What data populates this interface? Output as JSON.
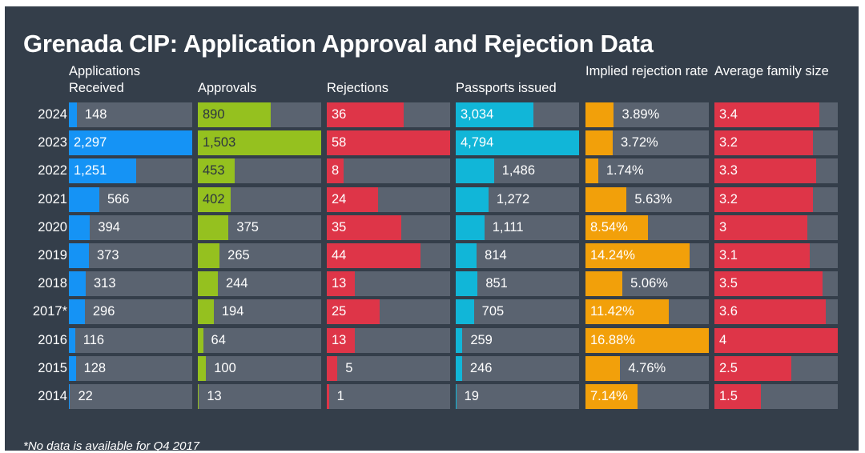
{
  "title": "Grenada CIP: Application Approval and Rejection Data",
  "footnote": "*No data is available for Q4 2017",
  "colors": {
    "background": "#343e4a",
    "track": "#5a6370",
    "applications": "#1593f5",
    "approvals": "#95c11f",
    "rejections": "#de3548",
    "passports": "#11b6d8",
    "rejection_rate": "#f2a00a",
    "family_size": "#de3548"
  },
  "chart_data": {
    "type": "bar",
    "orientation": "horizontal",
    "categories": [
      "2024",
      "2023",
      "2022",
      "2021",
      "2020",
      "2019",
      "2018",
      "2017*",
      "2016",
      "2015",
      "2014"
    ],
    "series": [
      {
        "name": "Applications Received",
        "values": [
          148,
          2297,
          1251,
          566,
          394,
          373,
          313,
          296,
          116,
          128,
          22
        ],
        "labels": [
          "148",
          "2,297",
          "1,251",
          "566",
          "394",
          "373",
          "313",
          "296",
          "116",
          "128",
          "22"
        ],
        "max": 2297,
        "color_key": "applications"
      },
      {
        "name": "Approvals",
        "values": [
          890,
          1503,
          453,
          402,
          375,
          265,
          244,
          194,
          64,
          100,
          13
        ],
        "labels": [
          "890",
          "1,503",
          "453",
          "402",
          "375",
          "265",
          "244",
          "194",
          "64",
          "100",
          "13"
        ],
        "max": 1503,
        "color_key": "approvals"
      },
      {
        "name": "Rejections",
        "values": [
          36,
          58,
          8,
          24,
          35,
          44,
          13,
          25,
          13,
          5,
          1
        ],
        "labels": [
          "36",
          "58",
          "8",
          "24",
          "35",
          "44",
          "13",
          "25",
          "13",
          "5",
          "1"
        ],
        "max": 58,
        "color_key": "rejections"
      },
      {
        "name": "Passports issued",
        "values": [
          3034,
          4794,
          1486,
          1272,
          1111,
          814,
          851,
          705,
          259,
          246,
          19
        ],
        "labels": [
          "3,034",
          "4,794",
          "1,486",
          "1,272",
          "1,111",
          "814",
          "851",
          "705",
          "259",
          "246",
          "19"
        ],
        "max": 4794,
        "color_key": "passports"
      },
      {
        "name": "Implied rejection rate",
        "values": [
          3.89,
          3.72,
          1.74,
          5.63,
          8.54,
          14.24,
          5.06,
          11.42,
          16.88,
          4.76,
          7.14
        ],
        "labels": [
          "3.89%",
          "3.72%",
          "1.74%",
          "5.63%",
          "8.54%",
          "14.24%",
          "5.06%",
          "11.42%",
          "16.88%",
          "4.76%",
          "7.14%"
        ],
        "max": 16.88,
        "color_key": "rejection_rate"
      },
      {
        "name": "Average family size",
        "values": [
          3.4,
          3.2,
          3.3,
          3.2,
          3,
          3.1,
          3.5,
          3.6,
          4,
          2.5,
          1.5
        ],
        "labels": [
          "3.4",
          "3.2",
          "3.3",
          "3.2",
          "3",
          "3.1",
          "3.5",
          "3.6",
          "4",
          "2.5",
          "1.5"
        ],
        "max": 4,
        "color_key": "family_size"
      }
    ]
  }
}
